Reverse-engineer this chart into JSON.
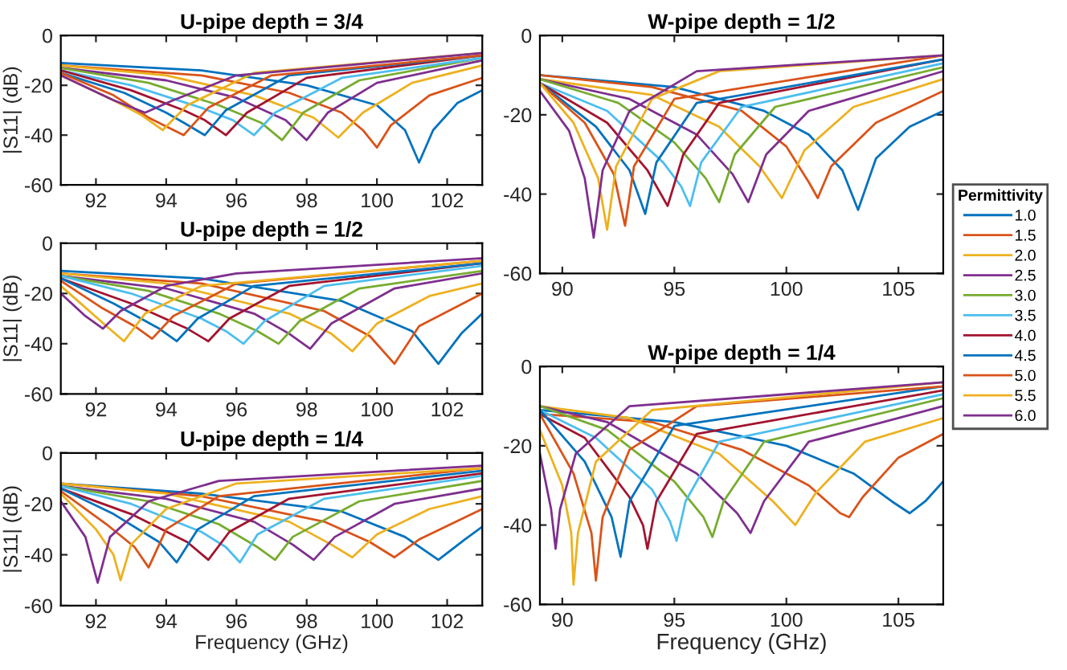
{
  "chart_data": [
    {
      "type": "line",
      "title": "U-pipe depth = 3/4",
      "ylabel": "|S11| (dB)",
      "xlim": [
        91,
        103
      ],
      "ylim": [
        -60,
        0
      ],
      "xticks": [
        92,
        94,
        96,
        98,
        100,
        102
      ],
      "yticks": [
        -60,
        -40,
        -20,
        0
      ],
      "grid": false,
      "series": [
        {
          "color": "#0072bd",
          "x": [
            91,
            95,
            98,
            100,
            100.8,
            101.2,
            101.6,
            102.3,
            103
          ],
          "values": [
            -11,
            -14,
            -20,
            -28,
            -38,
            -51,
            -38,
            -27,
            -22
          ]
        },
        {
          "color": "#d95319",
          "x": [
            91,
            95,
            97.5,
            99,
            99.6,
            100,
            100.4,
            101.5,
            103
          ],
          "values": [
            -12,
            -16,
            -23,
            -31,
            -38,
            -45,
            -36,
            -24,
            -17
          ]
        },
        {
          "color": "#edb120",
          "x": [
            91,
            94,
            96.5,
            98.2,
            98.9,
            99.6,
            101,
            103
          ],
          "values": [
            -12,
            -16,
            -24,
            -33,
            -41,
            -31,
            -19,
            -12
          ]
        },
        {
          "color": "#7e2f8e",
          "x": [
            91,
            94,
            96,
            97.4,
            98,
            98.6,
            100,
            103
          ],
          "values": [
            -13,
            -18,
            -25,
            -34,
            -42,
            -31,
            -19,
            -10
          ]
        },
        {
          "color": "#77ac30",
          "x": [
            91,
            93.5,
            95.5,
            96.7,
            97.3,
            97.9,
            99.5,
            103
          ],
          "values": [
            -13,
            -19,
            -28,
            -35,
            -42,
            -31,
            -18,
            -9
          ]
        },
        {
          "color": "#4dbeee",
          "x": [
            91,
            93,
            95,
            95.9,
            96.5,
            97.1,
            99,
            103
          ],
          "values": [
            -14,
            -20,
            -29,
            -34,
            -40,
            -31,
            -17,
            -9
          ]
        },
        {
          "color": "#a2142f",
          "x": [
            91,
            93,
            94.5,
            95.1,
            95.7,
            96.3,
            98,
            103
          ],
          "values": [
            -14,
            -22,
            -30,
            -34,
            -40,
            -31,
            -17,
            -8
          ]
        },
        {
          "color": "#0072bd",
          "x": [
            91,
            92.8,
            94,
            94.5,
            95.1,
            95.7,
            97.5,
            103
          ],
          "values": [
            -15,
            -23,
            -31,
            -35,
            -40,
            -30,
            -16,
            -8
          ]
        },
        {
          "color": "#d95319",
          "x": [
            91,
            92.5,
            93.5,
            94.5,
            95.2,
            97,
            103
          ],
          "values": [
            -15,
            -24,
            -33,
            -40,
            -29,
            -16,
            -8
          ]
        },
        {
          "color": "#edb120",
          "x": [
            91,
            92.5,
            93.3,
            93.9,
            94.6,
            96.5,
            103
          ],
          "values": [
            -16,
            -26,
            -32,
            -38,
            -28,
            -15,
            -7
          ]
        },
        {
          "color": "#7e2f8e",
          "x": [
            91,
            92.5,
            93.4,
            94.2,
            96,
            103
          ],
          "values": [
            -16,
            -26,
            -31,
            -26,
            -16,
            -7
          ]
        }
      ]
    },
    {
      "type": "line",
      "title": "U-pipe depth = 1/2",
      "ylabel": "|S11| (dB)",
      "xlim": [
        91,
        103
      ],
      "ylim": [
        -60,
        0
      ],
      "xticks": [
        92,
        94,
        96,
        98,
        100,
        102
      ],
      "yticks": [
        -60,
        -40,
        -20,
        0
      ],
      "grid": false,
      "series": [
        {
          "color": "#0072bd",
          "x": [
            91,
            95,
            99,
            101,
            101.75,
            102.4,
            103
          ],
          "values": [
            -11,
            -14,
            -23,
            -35,
            -48,
            -36,
            -28
          ]
        },
        {
          "color": "#d95319",
          "x": [
            91,
            95,
            98.5,
            99.8,
            100.5,
            101.2,
            103
          ],
          "values": [
            -12,
            -16,
            -27,
            -37,
            -48,
            -33,
            -20
          ]
        },
        {
          "color": "#edb120",
          "x": [
            91,
            94,
            97.5,
            98.7,
            99.3,
            100,
            101.5,
            103
          ],
          "values": [
            -12,
            -16,
            -28,
            -36,
            -43,
            -32,
            -21,
            -16
          ]
        },
        {
          "color": "#7e2f8e",
          "x": [
            91,
            94,
            96.5,
            97.5,
            98.1,
            98.7,
            100.5,
            103
          ],
          "values": [
            -13,
            -18,
            -28,
            -36,
            -42,
            -32,
            -18,
            -12
          ]
        },
        {
          "color": "#77ac30",
          "x": [
            91,
            93.5,
            95.5,
            96.6,
            97.2,
            97.8,
            99.5,
            103
          ],
          "values": [
            -13,
            -19,
            -28,
            -35,
            -40,
            -31,
            -18,
            -11
          ]
        },
        {
          "color": "#4dbeee",
          "x": [
            91,
            93,
            95,
            95.7,
            96.2,
            96.8,
            98.5,
            103
          ],
          "values": [
            -13,
            -20,
            -30,
            -35,
            -40,
            -31,
            -17,
            -9
          ]
        },
        {
          "color": "#a2142f",
          "x": [
            91,
            93,
            94.6,
            95.2,
            95.8,
            97.5,
            103
          ],
          "values": [
            -14,
            -24,
            -34,
            -39,
            -30,
            -17,
            -8
          ]
        },
        {
          "color": "#0072bd",
          "x": [
            91,
            92.5,
            93.8,
            94.3,
            94.9,
            96.5,
            103
          ],
          "values": [
            -14,
            -24,
            -34,
            -39,
            -30,
            -17,
            -8
          ]
        },
        {
          "color": "#d95319",
          "x": [
            91,
            92.2,
            93.1,
            93.6,
            94.2,
            96,
            103
          ],
          "values": [
            -15,
            -26,
            -33,
            -38,
            -29,
            -16,
            -7
          ]
        },
        {
          "color": "#edb120",
          "x": [
            91,
            92.3,
            92.8,
            93.4,
            95,
            103
          ],
          "values": [
            -17,
            -33,
            -39,
            -28,
            -17,
            -7
          ]
        },
        {
          "color": "#7e2f8e",
          "x": [
            91,
            91.7,
            92.2,
            92.7,
            94,
            96,
            103
          ],
          "values": [
            -20,
            -29,
            -34,
            -27,
            -17,
            -12,
            -6
          ]
        }
      ]
    },
    {
      "type": "line",
      "title": "U-pipe depth = 1/4",
      "xlabel": "Frequency (GHz)",
      "ylabel": "|S11| (dB)",
      "xlim": [
        91,
        103
      ],
      "ylim": [
        -60,
        0
      ],
      "xticks": [
        92,
        94,
        96,
        98,
        100,
        102
      ],
      "yticks": [
        -60,
        -40,
        -20,
        0
      ],
      "grid": false,
      "series": [
        {
          "color": "#0072bd",
          "x": [
            91,
            95,
            99,
            100.8,
            101.75,
            102.5,
            103
          ],
          "values": [
            -12,
            -16,
            -23,
            -33,
            -42,
            -34,
            -29
          ]
        },
        {
          "color": "#d95319",
          "x": [
            91,
            95,
            98.5,
            99.8,
            100.5,
            101.2,
            103
          ],
          "values": [
            -12,
            -17,
            -27,
            -35,
            -41,
            -34,
            -22
          ]
        },
        {
          "color": "#edb120",
          "x": [
            91,
            94,
            97.5,
            98.7,
            99.3,
            100,
            101.5,
            103
          ],
          "values": [
            -12,
            -16,
            -27,
            -36,
            -41,
            -32,
            -22,
            -17
          ]
        },
        {
          "color": "#7e2f8e",
          "x": [
            91,
            94,
            96.5,
            97.6,
            98.2,
            98.8,
            100.5,
            103
          ],
          "values": [
            -13,
            -18,
            -27,
            -36,
            -42,
            -33,
            -20,
            -14
          ]
        },
        {
          "color": "#77ac30",
          "x": [
            91,
            93.5,
            95.5,
            96.6,
            97.1,
            97.6,
            99.5,
            103
          ],
          "values": [
            -13,
            -19,
            -28,
            -37,
            -42,
            -33,
            -19,
            -11
          ]
        },
        {
          "color": "#4dbeee",
          "x": [
            91,
            93,
            95,
            95.7,
            96.1,
            96.6,
            98.5,
            103
          ],
          "values": [
            -13,
            -20,
            -31,
            -37,
            -43,
            -32,
            -18,
            -9
          ]
        },
        {
          "color": "#a2142f",
          "x": [
            91,
            93,
            94.6,
            95.2,
            95.8,
            97.5,
            103
          ],
          "values": [
            -14,
            -24,
            -35,
            -42,
            -31,
            -18,
            -8
          ]
        },
        {
          "color": "#0072bd",
          "x": [
            91,
            92.5,
            93.8,
            94.3,
            94.9,
            96.5,
            103
          ],
          "values": [
            -14,
            -24,
            -35,
            -43,
            -30,
            -17,
            -7
          ]
        },
        {
          "color": "#d95319",
          "x": [
            91,
            92.3,
            93.1,
            93.5,
            94,
            95.5,
            103
          ],
          "values": [
            -15,
            -28,
            -37,
            -45,
            -30,
            -17,
            -6
          ]
        },
        {
          "color": "#edb120",
          "x": [
            91,
            92,
            92.5,
            92.7,
            93,
            94,
            96,
            103
          ],
          "values": [
            -16,
            -30,
            -40,
            -50,
            -36,
            -22,
            -12,
            -6
          ]
        },
        {
          "color": "#7e2f8e",
          "x": [
            91,
            91.7,
            92.05,
            92.4,
            93.5,
            95.5,
            103
          ],
          "values": [
            -19,
            -33,
            -51,
            -33,
            -19,
            -11,
            -5
          ]
        }
      ]
    },
    {
      "type": "line",
      "title": "W-pipe depth = 1/2",
      "xlim": [
        89,
        107
      ],
      "ylim": [
        -60,
        0
      ],
      "xticks": [
        90,
        95,
        100,
        105
      ],
      "yticks": [
        -60,
        -40,
        -20,
        0
      ],
      "grid": false,
      "legend": "right",
      "legend_title": "Permittivity",
      "series": [
        {
          "name": "1.0",
          "color": "#0072bd",
          "x": [
            89,
            95,
            99,
            101,
            102.5,
            103.2,
            104,
            105.5,
            107
          ],
          "values": [
            -10,
            -13,
            -19,
            -25,
            -34,
            -44,
            -31,
            -23,
            -19
          ]
        },
        {
          "name": "1.5",
          "color": "#d95319",
          "x": [
            89,
            94,
            98,
            100,
            101,
            101.4,
            102,
            104,
            107
          ],
          "values": [
            -10,
            -13,
            -19,
            -28,
            -37,
            -41,
            -33,
            -22,
            -14
          ]
        },
        {
          "name": "2.0",
          "color": "#edb120",
          "x": [
            89,
            94,
            97,
            98.8,
            99.8,
            100.8,
            103,
            107
          ],
          "values": [
            -11,
            -15,
            -23,
            -33,
            -41,
            -29,
            -18,
            -11
          ]
        },
        {
          "name": "2.5",
          "color": "#7e2f8e",
          "x": [
            89,
            93,
            96,
            97.6,
            98.3,
            99.1,
            101,
            107
          ],
          "values": [
            -11,
            -16,
            -25,
            -35,
            -42,
            -30,
            -19,
            -9
          ]
        },
        {
          "name": "3.0",
          "color": "#77ac30",
          "x": [
            89,
            92.5,
            95,
            96.4,
            97,
            97.7,
            99.5,
            107
          ],
          "values": [
            -11,
            -17,
            -27,
            -36,
            -42,
            -30,
            -18,
            -8
          ]
        },
        {
          "name": "3.5",
          "color": "#4dbeee",
          "x": [
            89,
            92,
            94.5,
            95.3,
            95.7,
            96.2,
            98,
            107
          ],
          "values": [
            -12,
            -19,
            -32,
            -38,
            -43,
            -32,
            -18,
            -7
          ]
        },
        {
          "name": "4.0",
          "color": "#a2142f",
          "x": [
            89,
            92,
            93.8,
            94.7,
            95.4,
            97,
            107
          ],
          "values": [
            -12,
            -22,
            -34,
            -43,
            -30,
            -17,
            -6
          ]
        },
        {
          "name": "4.5",
          "color": "#0072bd",
          "x": [
            89,
            91.5,
            93,
            93.7,
            94.2,
            96,
            107
          ],
          "values": [
            -12,
            -23,
            -34,
            -45,
            -32,
            -17,
            -6
          ]
        },
        {
          "name": "5.0",
          "color": "#d95319",
          "x": [
            89,
            91,
            92.3,
            92.8,
            93.2,
            95,
            107
          ],
          "values": [
            -12,
            -22,
            -35,
            -48,
            -33,
            -16,
            -5
          ]
        },
        {
          "name": "5.5",
          "color": "#edb120",
          "x": [
            89,
            90.5,
            91.6,
            92,
            92.4,
            94,
            97,
            107
          ],
          "values": [
            -12,
            -22,
            -36,
            -49,
            -33,
            -16,
            -9,
            -5
          ]
        },
        {
          "name": "6.0",
          "color": "#7e2f8e",
          "x": [
            89,
            90.3,
            91,
            91.4,
            91.8,
            93,
            96,
            107
          ],
          "values": [
            -14,
            -24,
            -36,
            -51,
            -34,
            -19,
            -9,
            -5
          ]
        }
      ]
    },
    {
      "type": "line",
      "title": "W-pipe depth = 1/4",
      "xlabel": "Frequency (GHz)",
      "xlim": [
        89,
        107
      ],
      "ylim": [
        -60,
        0
      ],
      "xticks": [
        90,
        95,
        100,
        105
      ],
      "yticks": [
        -60,
        -40,
        -20,
        0
      ],
      "grid": false,
      "series": [
        {
          "color": "#0072bd",
          "x": [
            89,
            95,
            100,
            103,
            104.7,
            105.5,
            106.2,
            107
          ],
          "values": [
            -11,
            -14,
            -20,
            -27,
            -34,
            -37,
            -34,
            -29
          ]
        },
        {
          "color": "#d95319",
          "x": [
            89,
            94,
            98,
            101,
            102.4,
            102.8,
            103.4,
            105,
            107
          ],
          "values": [
            -12,
            -14,
            -21,
            -30,
            -37,
            -38,
            -33,
            -23,
            -17
          ]
        },
        {
          "color": "#edb120",
          "x": [
            89,
            93,
            97,
            99.4,
            100.4,
            101.3,
            103.5,
            107
          ],
          "values": [
            -10,
            -13,
            -22,
            -34,
            -40,
            -32,
            -19,
            -13
          ]
        },
        {
          "color": "#7e2f8e",
          "x": [
            89,
            92,
            96,
            97.8,
            98.4,
            99,
            101,
            107
          ],
          "values": [
            -10,
            -14,
            -27,
            -37,
            -42,
            -34,
            -19,
            -10
          ]
        },
        {
          "color": "#77ac30",
          "x": [
            89,
            92,
            95,
            96.3,
            96.7,
            97.2,
            99,
            107
          ],
          "values": [
            -10,
            -16,
            -29,
            -38,
            -43,
            -34,
            -19,
            -8
          ]
        },
        {
          "color": "#4dbeee",
          "x": [
            89,
            91.5,
            94,
            94.8,
            95.1,
            95.5,
            97,
            107
          ],
          "values": [
            -11,
            -18,
            -31,
            -39,
            -44,
            -34,
            -19,
            -7
          ]
        },
        {
          "color": "#a2142f",
          "x": [
            89,
            91,
            93,
            93.6,
            93.8,
            94.2,
            96,
            107
          ],
          "values": [
            -12,
            -18,
            -33,
            -40,
            -46,
            -34,
            -17,
            -6
          ]
        },
        {
          "color": "#0072bd",
          "x": [
            89,
            91,
            92.2,
            92.6,
            93,
            95,
            107
          ],
          "values": [
            -11,
            -24,
            -38,
            -48,
            -34,
            -15,
            -5
          ]
        },
        {
          "color": "#d95319",
          "x": [
            89,
            90.5,
            91.3,
            91.5,
            91.8,
            93,
            96,
            107
          ],
          "values": [
            -12,
            -27,
            -42,
            -54,
            -38,
            -21,
            -10,
            -5
          ]
        },
        {
          "color": "#edb120",
          "x": [
            89,
            90,
            90.4,
            90.5,
            90.7,
            91.5,
            94,
            107
          ],
          "values": [
            -16,
            -30,
            -42,
            -55,
            -42,
            -24,
            -11,
            -4
          ]
        },
        {
          "color": "#7e2f8e",
          "x": [
            89,
            89.5,
            89.7,
            89.9,
            90.6,
            93,
            107
          ],
          "values": [
            -22,
            -36,
            -46,
            -36,
            -22,
            -10,
            -4
          ]
        }
      ]
    }
  ]
}
